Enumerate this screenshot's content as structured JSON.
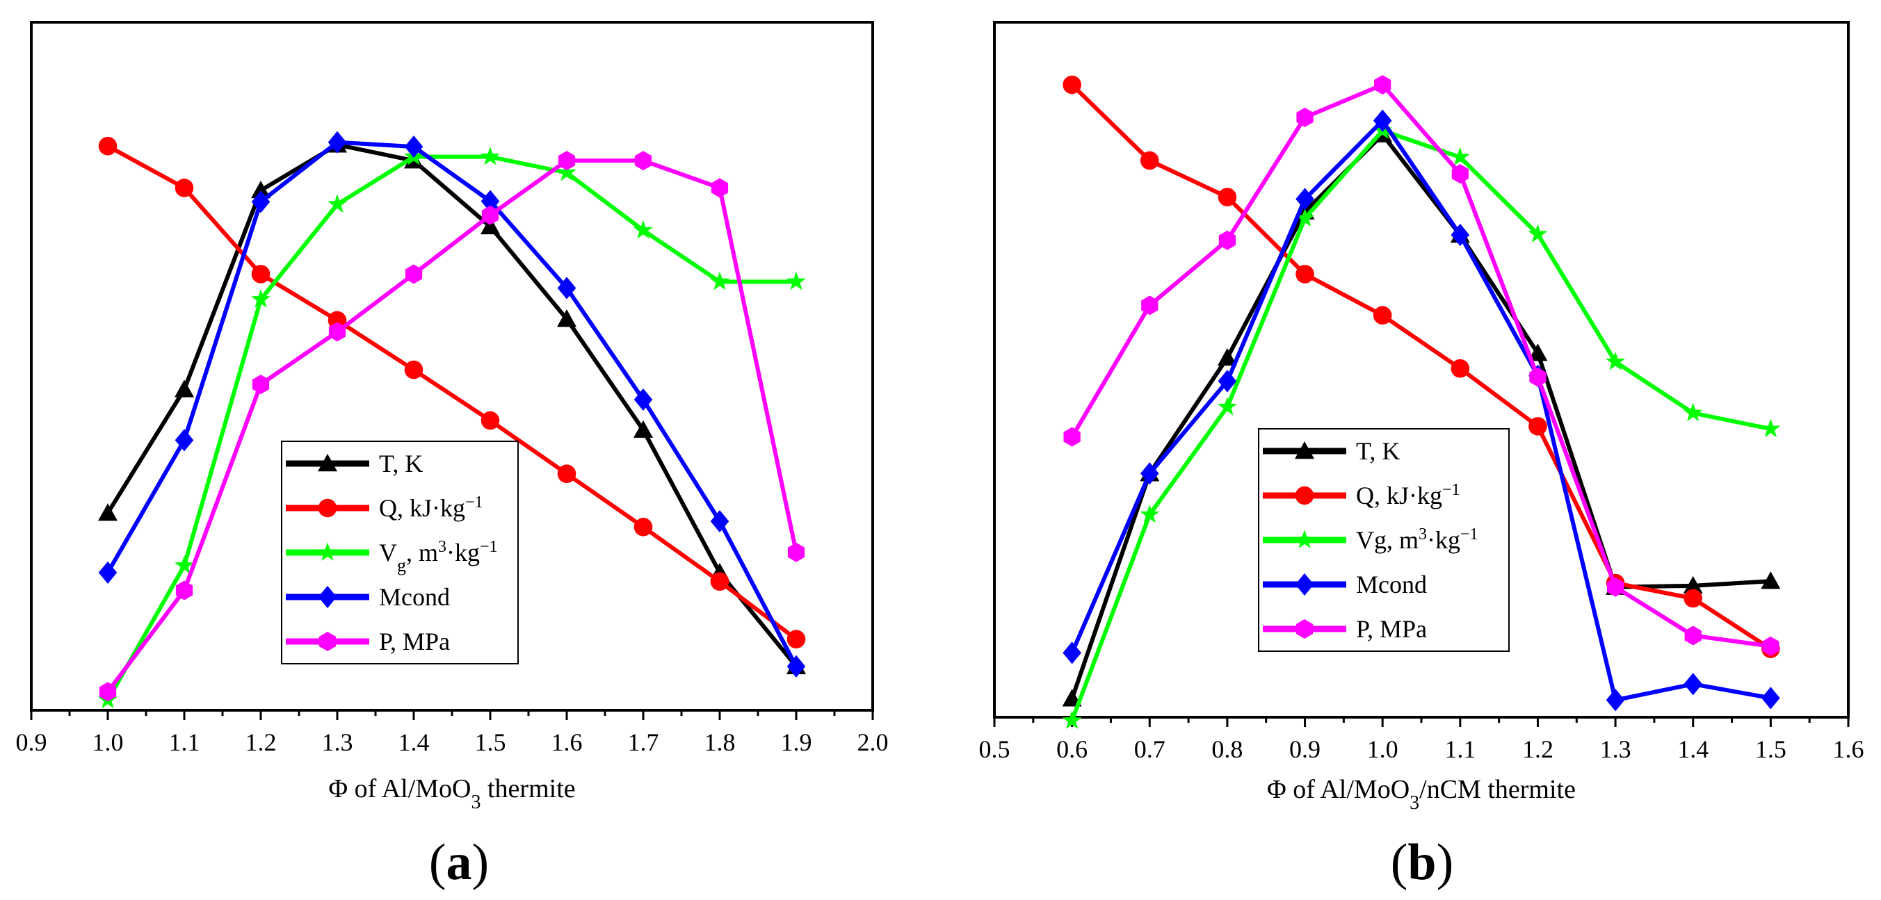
{
  "chart_data": [
    {
      "type": "line",
      "panel_label": "(a)",
      "xlabel": "Φ of Al/MoO₃ thermite",
      "xlabel_parts": [
        "Φ of Al/MoO",
        "3",
        " thermite"
      ],
      "xlim": [
        0.9,
        2.0
      ],
      "xticks": [
        "0.9",
        "1.0",
        "1.1",
        "1.2",
        "1.3",
        "1.4",
        "1.5",
        "1.6",
        "1.7",
        "1.8",
        "1.9",
        "2.0"
      ],
      "ylim": [
        0,
        100
      ],
      "legend_position": "center-right",
      "series": [
        {
          "name": "T, K",
          "color": "#000000",
          "marker": "triangle",
          "x": [
            1.0,
            1.1,
            1.2,
            1.3,
            1.4,
            1.5,
            1.6,
            1.7,
            1.8,
            1.9
          ],
          "y": [
            36.6,
            56.1,
            87.5,
            94.7,
            92.2,
            81.8,
            67.2,
            49.7,
            27.2,
            12.4
          ]
        },
        {
          "name": "Q, kJ·kg⁻¹",
          "color": "#ff0000",
          "marker": "circle",
          "x": [
            1.0,
            1.1,
            1.2,
            1.3,
            1.4,
            1.5,
            1.6,
            1.7,
            1.8,
            1.9
          ],
          "y": [
            94.5,
            87.9,
            74.3,
            67.0,
            59.2,
            51.2,
            42.8,
            34.4,
            25.8,
            16.7
          ]
        },
        {
          "name": "Vg, m³·kg⁻¹",
          "color": "#00ff00",
          "marker": "star",
          "x": [
            1.0,
            1.1,
            1.2,
            1.3,
            1.4,
            1.5,
            1.6,
            1.7,
            1.8,
            1.9
          ],
          "y": [
            7.1,
            28.3,
            70.3,
            85.3,
            92.8,
            92.8,
            90.3,
            81.2,
            73.1,
            73.1
          ]
        },
        {
          "name": "Mcond",
          "color": "#0000ff",
          "marker": "diamond",
          "x": [
            1.0,
            1.1,
            1.2,
            1.3,
            1.4,
            1.5,
            1.6,
            1.7,
            1.8,
            1.9
          ],
          "y": [
            27.2,
            48.1,
            85.7,
            95.1,
            94.4,
            85.8,
            72.1,
            54.5,
            35.3,
            12.4
          ]
        },
        {
          "name": "P, MPa",
          "color": "#ff00ff",
          "marker": "hexagon",
          "x": [
            1.0,
            1.1,
            1.2,
            1.3,
            1.4,
            1.5,
            1.6,
            1.7,
            1.8,
            1.9
          ],
          "y": [
            8.4,
            24.4,
            56.9,
            65.2,
            74.3,
            83.6,
            92.2,
            92.2,
            87.9,
            30.4
          ]
        }
      ],
      "legend": [
        "T, K",
        "Q,  kJ·kg⁻¹",
        "Vg,  m³·kg⁻¹",
        "Mcond",
        "P, MPa"
      ]
    },
    {
      "type": "line",
      "panel_label": "(b)",
      "xlabel": "Φ of Al/MoO₃/nCM thermite",
      "xlabel_parts": [
        "Φ of Al/MoO",
        "3",
        "/nCM thermite"
      ],
      "xlim": [
        0.5,
        1.6
      ],
      "xticks": [
        "0.5",
        "0.6",
        "0.7",
        "0.8",
        "0.9",
        "1.0",
        "1.1",
        "1.2",
        "1.3",
        "1.4",
        "1.5",
        "1.6"
      ],
      "ylim": [
        0,
        100
      ],
      "legend_position": "center-right",
      "series": [
        {
          "name": "T, K",
          "color": "#000000",
          "marker": "triangle",
          "x": [
            0.6,
            0.7,
            0.8,
            0.9,
            1.0,
            1.1,
            1.2,
            1.3,
            1.4,
            1.5
          ],
          "y": [
            7.6,
            41.5,
            58.9,
            80.9,
            92.5,
            77.4,
            59.6,
            24.4,
            24.6,
            25.3
          ]
        },
        {
          "name": "Q, kJ·kg⁻¹",
          "color": "#ff0000",
          "marker": "circle",
          "x": [
            0.6,
            0.7,
            0.8,
            0.9,
            1.0,
            1.1,
            1.2,
            1.3,
            1.4,
            1.5
          ],
          "y": [
            100.0,
            88.6,
            83.1,
            71.5,
            65.3,
            57.3,
            48.6,
            25.0,
            22.7,
            15.1
          ]
        },
        {
          "name": "Vg, m³·kg⁻¹",
          "color": "#00ff00",
          "marker": "star",
          "x": [
            0.6,
            0.7,
            0.8,
            0.9,
            1.0,
            1.1,
            1.2,
            1.3,
            1.4,
            1.5
          ],
          "y": [
            4.3,
            35.3,
            51.5,
            79.9,
            93.1,
            89.1,
            77.5,
            58.3,
            50.6,
            48.2
          ]
        },
        {
          "name": "Mcond",
          "color": "#0000ff",
          "marker": "diamond",
          "x": [
            0.6,
            0.7,
            0.8,
            0.9,
            1.0,
            1.1,
            1.2,
            1.3,
            1.4,
            1.5
          ],
          "y": [
            14.5,
            41.5,
            55.4,
            82.8,
            94.6,
            77.4,
            56.2,
            7.4,
            9.8,
            7.7
          ]
        },
        {
          "name": "P, MPa",
          "color": "#ff00ff",
          "marker": "hexagon",
          "x": [
            0.6,
            0.7,
            0.8,
            0.9,
            1.0,
            1.1,
            1.2,
            1.3,
            1.4,
            1.5
          ],
          "y": [
            47.0,
            66.8,
            76.6,
            95.1,
            100.0,
            86.6,
            56.0,
            24.4,
            17.1,
            15.5
          ]
        }
      ],
      "legend": [
        "T, K",
        "Q, kJ·kg⁻¹",
        "Vg, m³·kg⁻¹",
        "Mcond",
        "P, MPa"
      ]
    }
  ]
}
